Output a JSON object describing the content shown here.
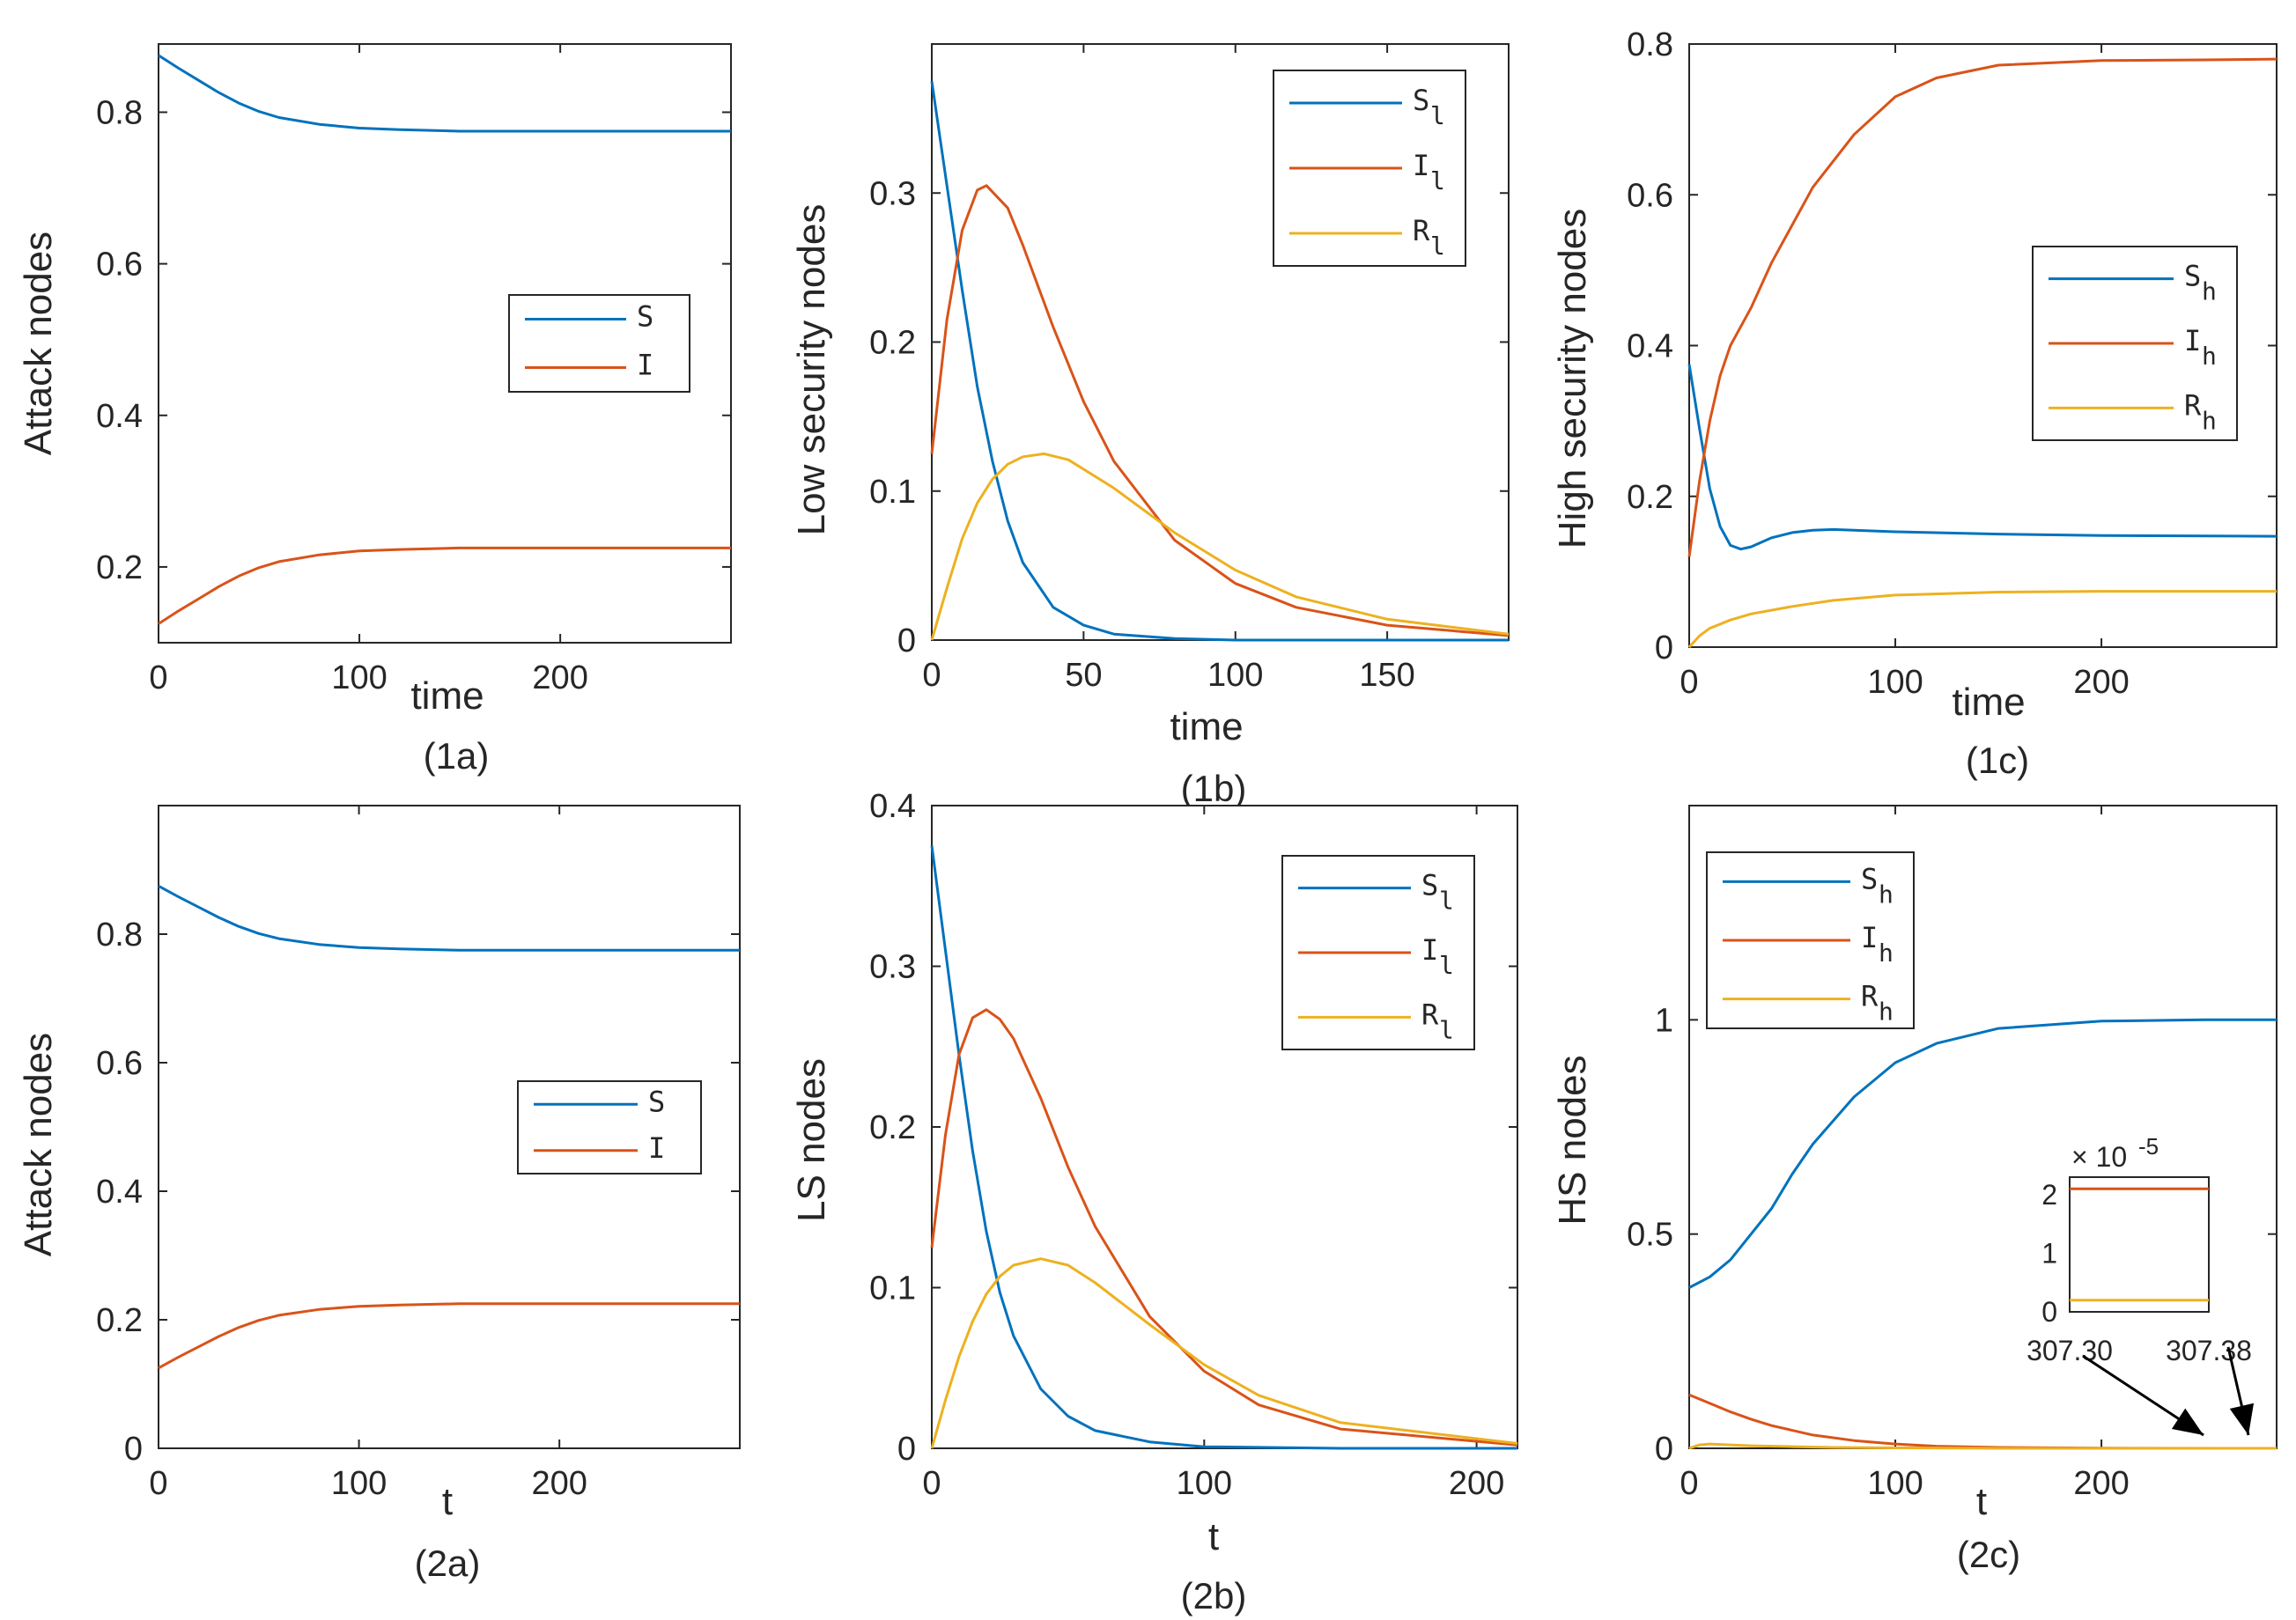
{
  "colors": {
    "S": "#0072BD",
    "I": "#D95319",
    "R": "#EDB120",
    "axis": "#262626"
  },
  "chart_data": [
    {
      "id": "1a",
      "type": "line",
      "caption": "(1a)",
      "xlabel": "time",
      "ylabel": "Attack nodes",
      "xlim": [
        0,
        285
      ],
      "ylim": [
        0.1,
        0.89
      ],
      "xticks": [
        0,
        100,
        200
      ],
      "xtick_labels": [
        "0",
        "100",
        "200"
      ],
      "yticks": [
        0.2,
        0.4,
        0.6,
        0.8
      ],
      "ytick_labels": [
        "0.2",
        "0.4",
        "0.6",
        "0.8"
      ],
      "legend_position": "middle-right",
      "series": [
        {
          "name": "S",
          "sub": "",
          "color": "#0072BD",
          "x": [
            0,
            10,
            20,
            30,
            40,
            50,
            60,
            80,
            100,
            120,
            150,
            200,
            250,
            285
          ],
          "y": [
            0.875,
            0.858,
            0.842,
            0.826,
            0.812,
            0.801,
            0.793,
            0.784,
            0.779,
            0.777,
            0.775,
            0.775,
            0.775,
            0.775
          ]
        },
        {
          "name": "I",
          "sub": "",
          "color": "#D95319",
          "x": [
            0,
            10,
            20,
            30,
            40,
            50,
            60,
            80,
            100,
            120,
            150,
            200,
            250,
            285
          ],
          "y": [
            0.125,
            0.142,
            0.158,
            0.174,
            0.188,
            0.199,
            0.207,
            0.216,
            0.221,
            0.223,
            0.225,
            0.225,
            0.225,
            0.225
          ]
        }
      ]
    },
    {
      "id": "1b",
      "type": "line",
      "caption": "(1b)",
      "xlabel": "time",
      "ylabel": "Low security nodes",
      "xlim": [
        0,
        190
      ],
      "ylim": [
        0,
        0.4
      ],
      "xticks": [
        0,
        50,
        100,
        150
      ],
      "xtick_labels": [
        "0",
        "50",
        "100",
        "150"
      ],
      "yticks": [
        0,
        0.1,
        0.2,
        0.3
      ],
      "ytick_labels": [
        "0",
        "0.1",
        "0.2",
        "0.3"
      ],
      "legend_position": "top-right",
      "series": [
        {
          "name": "S",
          "sub": "l",
          "color": "#0072BD",
          "x": [
            0,
            5,
            10,
            15,
            20,
            25,
            30,
            40,
            50,
            60,
            80,
            100,
            150,
            190
          ],
          "y": [
            0.375,
            0.305,
            0.235,
            0.17,
            0.12,
            0.08,
            0.052,
            0.022,
            0.01,
            0.004,
            0.001,
            0,
            0,
            0
          ]
        },
        {
          "name": "I",
          "sub": "l",
          "color": "#D95319",
          "x": [
            0,
            5,
            10,
            15,
            18,
            25,
            30,
            40,
            50,
            60,
            80,
            100,
            120,
            150,
            190
          ],
          "y": [
            0.125,
            0.215,
            0.275,
            0.302,
            0.305,
            0.29,
            0.265,
            0.21,
            0.16,
            0.12,
            0.067,
            0.038,
            0.022,
            0.01,
            0.003
          ]
        },
        {
          "name": "R",
          "sub": "l",
          "color": "#EDB120",
          "x": [
            0,
            5,
            10,
            15,
            20,
            25,
            30,
            37,
            45,
            60,
            80,
            100,
            120,
            150,
            190
          ],
          "y": [
            0,
            0.035,
            0.068,
            0.092,
            0.108,
            0.118,
            0.123,
            0.125,
            0.121,
            0.102,
            0.072,
            0.047,
            0.029,
            0.014,
            0.004
          ]
        }
      ]
    },
    {
      "id": "1c",
      "type": "line",
      "caption": "(1c)",
      "xlabel": "time",
      "ylabel": "High security nodes",
      "xlim": [
        0,
        285
      ],
      "ylim": [
        0,
        0.8
      ],
      "xticks": [
        0,
        100,
        200
      ],
      "xtick_labels": [
        "0",
        "100",
        "200"
      ],
      "yticks": [
        0,
        0.2,
        0.4,
        0.6,
        0.8
      ],
      "ytick_labels": [
        "0",
        "0.2",
        "0.4",
        "0.6",
        "0.8"
      ],
      "legend_position": "middle-right",
      "series": [
        {
          "name": "S",
          "sub": "h",
          "color": "#0072BD",
          "x": [
            0,
            5,
            10,
            15,
            20,
            25,
            30,
            40,
            50,
            60,
            70,
            100,
            150,
            200,
            285
          ],
          "y": [
            0.375,
            0.29,
            0.21,
            0.16,
            0.135,
            0.13,
            0.133,
            0.145,
            0.152,
            0.155,
            0.156,
            0.153,
            0.15,
            0.148,
            0.147
          ]
        },
        {
          "name": "I",
          "sub": "h",
          "color": "#D95319",
          "x": [
            0,
            5,
            10,
            15,
            20,
            30,
            40,
            60,
            80,
            100,
            120,
            150,
            200,
            250,
            285
          ],
          "y": [
            0.12,
            0.22,
            0.3,
            0.36,
            0.4,
            0.45,
            0.51,
            0.61,
            0.68,
            0.73,
            0.755,
            0.772,
            0.778,
            0.779,
            0.78
          ]
        },
        {
          "name": "R",
          "sub": "h",
          "color": "#EDB120",
          "x": [
            0,
            5,
            10,
            20,
            30,
            50,
            70,
            100,
            150,
            200,
            285
          ],
          "y": [
            0,
            0.015,
            0.025,
            0.036,
            0.044,
            0.054,
            0.062,
            0.069,
            0.073,
            0.074,
            0.074
          ]
        }
      ]
    },
    {
      "id": "2a",
      "type": "line",
      "caption": "(2a)",
      "xlabel": "t",
      "ylabel": "Attack nodes",
      "xlim": [
        0,
        290
      ],
      "ylim": [
        0,
        1.0
      ],
      "xticks": [
        0,
        100,
        200
      ],
      "xtick_labels": [
        "0",
        "100",
        "200"
      ],
      "yticks": [
        0,
        0.2,
        0.4,
        0.6,
        0.8
      ],
      "ytick_labels": [
        "0",
        "0.2",
        "0.4",
        "0.6",
        "0.8"
      ],
      "legend_position": "middle-right",
      "series": [
        {
          "name": "S",
          "sub": "",
          "color": "#0072BD",
          "x": [
            0,
            10,
            20,
            30,
            40,
            50,
            60,
            80,
            100,
            120,
            150,
            200,
            250,
            290
          ],
          "y": [
            0.875,
            0.858,
            0.842,
            0.826,
            0.812,
            0.801,
            0.793,
            0.784,
            0.779,
            0.777,
            0.775,
            0.775,
            0.775,
            0.775
          ]
        },
        {
          "name": "I",
          "sub": "",
          "color": "#D95319",
          "x": [
            0,
            10,
            20,
            30,
            40,
            50,
            60,
            80,
            100,
            120,
            150,
            200,
            250,
            290
          ],
          "y": [
            0.125,
            0.142,
            0.158,
            0.174,
            0.188,
            0.199,
            0.207,
            0.216,
            0.221,
            0.223,
            0.225,
            0.225,
            0.225,
            0.225
          ]
        }
      ]
    },
    {
      "id": "2b",
      "type": "line",
      "caption": "(2b)",
      "xlabel": "t",
      "ylabel": "LS nodes",
      "xlim": [
        0,
        215
      ],
      "ylim": [
        0,
        0.4
      ],
      "xticks": [
        0,
        100,
        200
      ],
      "xtick_labels": [
        "0",
        "100",
        "200"
      ],
      "yticks": [
        0,
        0.1,
        0.2,
        0.3,
        0.4
      ],
      "ytick_labels": [
        "0",
        "0.1",
        "0.2",
        "0.3",
        "0.4"
      ],
      "legend_position": "top-right",
      "series": [
        {
          "name": "S",
          "sub": "l",
          "color": "#0072BD",
          "x": [
            0,
            5,
            10,
            15,
            20,
            25,
            30,
            40,
            50,
            60,
            80,
            100,
            150,
            215
          ],
          "y": [
            0.375,
            0.31,
            0.245,
            0.185,
            0.135,
            0.097,
            0.07,
            0.037,
            0.02,
            0.011,
            0.004,
            0.001,
            0,
            0
          ]
        },
        {
          "name": "I",
          "sub": "l",
          "color": "#D95319",
          "x": [
            0,
            5,
            10,
            15,
            20,
            25,
            30,
            40,
            50,
            60,
            80,
            100,
            120,
            150,
            215
          ],
          "y": [
            0.125,
            0.195,
            0.245,
            0.268,
            0.273,
            0.267,
            0.255,
            0.218,
            0.175,
            0.138,
            0.082,
            0.048,
            0.027,
            0.012,
            0.002
          ]
        },
        {
          "name": "R",
          "sub": "l",
          "color": "#EDB120",
          "x": [
            0,
            5,
            10,
            15,
            20,
            25,
            30,
            40,
            50,
            60,
            80,
            100,
            120,
            150,
            215
          ],
          "y": [
            0,
            0.03,
            0.057,
            0.079,
            0.096,
            0.107,
            0.114,
            0.118,
            0.114,
            0.103,
            0.077,
            0.052,
            0.033,
            0.016,
            0.003
          ]
        }
      ]
    },
    {
      "id": "2c",
      "type": "line",
      "caption": "(2c)",
      "xlabel": "t",
      "ylabel": "HS nodes",
      "xlim": [
        0,
        285
      ],
      "ylim": [
        0,
        1.5
      ],
      "xticks": [
        0,
        100,
        200
      ],
      "xtick_labels": [
        "0",
        "100",
        "200"
      ],
      "yticks": [
        0,
        0.5,
        1
      ],
      "ytick_labels": [
        "0",
        "0.5",
        "1"
      ],
      "legend_position": "top-left",
      "series": [
        {
          "name": "S",
          "sub": "h",
          "color": "#0072BD",
          "x": [
            0,
            10,
            20,
            30,
            40,
            50,
            60,
            80,
            100,
            120,
            150,
            200,
            250,
            285
          ],
          "y": [
            0.375,
            0.4,
            0.44,
            0.5,
            0.56,
            0.64,
            0.71,
            0.82,
            0.9,
            0.945,
            0.98,
            0.997,
            1.0,
            1.0
          ]
        },
        {
          "name": "I",
          "sub": "h",
          "color": "#D95319",
          "x": [
            0,
            10,
            20,
            30,
            40,
            60,
            80,
            100,
            120,
            150,
            200,
            285
          ],
          "y": [
            0.125,
            0.105,
            0.085,
            0.068,
            0.053,
            0.031,
            0.018,
            0.01,
            0.005,
            0.002,
            0.0005,
            0
          ]
        },
        {
          "name": "R",
          "sub": "h",
          "color": "#EDB120",
          "x": [
            0,
            5,
            10,
            20,
            30,
            50,
            70,
            100,
            150,
            285
          ],
          "y": [
            0,
            0.008,
            0.01,
            0.008,
            0.006,
            0.004,
            0.002,
            0.001,
            0,
            0
          ]
        }
      ],
      "inset": {
        "exponent_label": "× 10",
        "exponent": "-5",
        "xlim": [
          307.3,
          307.38
        ],
        "ylim": [
          0,
          2.3
        ],
        "xtick_labels": [
          "307.30",
          "307.38"
        ],
        "yticks": [
          0,
          1,
          2
        ],
        "ytick_labels": [
          "0",
          "1",
          "2"
        ],
        "series": [
          {
            "name": "I",
            "sub": "h",
            "color": "#D95319",
            "value": 2.1
          },
          {
            "name": "R",
            "sub": "h",
            "color": "#EDB120",
            "value": 0.2
          }
        ]
      }
    }
  ]
}
